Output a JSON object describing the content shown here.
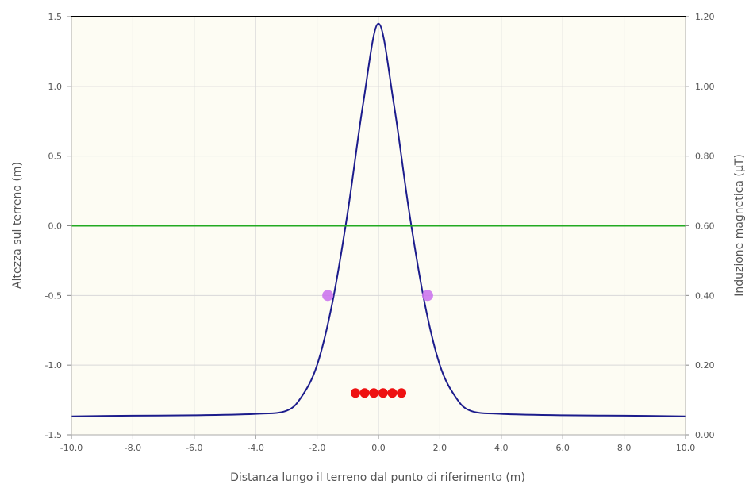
{
  "chart_data": {
    "type": "line",
    "title": "",
    "xlabel": "Distanza lungo il terreno dal punto di riferimento (m)",
    "ylabel_left": "Altezza sul terreno (m)",
    "ylabel_right": "Induzione magnetica (μT)",
    "xlim": [
      -10,
      10
    ],
    "ylim_left": [
      -1.5,
      1.5
    ],
    "ylim_right": [
      0,
      1.2
    ],
    "x_ticks": [
      "-10.0",
      "-8.0",
      "-6.0",
      "-4.0",
      "-2.0",
      "0.0",
      "2.0",
      "4.0",
      "6.0",
      "8.0",
      "10.0"
    ],
    "y_left_ticks": [
      "-1.5",
      "-1.0",
      "-0.5",
      "0.0",
      "0.5",
      "1.0",
      "1.5"
    ],
    "y_right_ticks": [
      "0.00",
      "0.20",
      "0.40",
      "0.60",
      "0.80",
      "1.00",
      "1.20"
    ],
    "grid": true,
    "colors": {
      "plot_background": "#fdfcf3",
      "grid": "#d8d8d8",
      "field_curve": "#1c1c8c",
      "ground_line": "#22aa22",
      "conductors": "#ee1111",
      "markers": "#cc77ee",
      "top_border": "#000000"
    },
    "series": [
      {
        "axis": "right",
        "style": "line",
        "x": [
          -10,
          -8,
          -6,
          -4,
          -3,
          -2.5,
          -2,
          -1.5,
          -1,
          -0.5,
          0,
          0.5,
          1,
          1.5,
          2,
          2.5,
          3,
          4,
          6,
          8,
          10
        ],
        "y": [
          0.053,
          0.055,
          0.056,
          0.06,
          0.069,
          0.11,
          0.2,
          0.38,
          0.64,
          0.95,
          1.18,
          0.95,
          0.64,
          0.38,
          0.2,
          0.11,
          0.069,
          0.06,
          0.056,
          0.055,
          0.053
        ]
      },
      {
        "axis": "left",
        "style": "line",
        "x": [
          -10,
          10
        ],
        "y": [
          0,
          0
        ]
      },
      {
        "axis": "left",
        "style": "points",
        "x": [
          -0.75,
          -0.45,
          -0.15,
          0.15,
          0.45,
          0.75
        ],
        "y": [
          -1.2,
          -1.2,
          -1.2,
          -1.2,
          -1.2,
          -1.2
        ]
      },
      {
        "axis": "left",
        "style": "points",
        "x": [
          -1.65,
          1.6
        ],
        "y": [
          -0.5,
          -0.5
        ]
      }
    ]
  }
}
